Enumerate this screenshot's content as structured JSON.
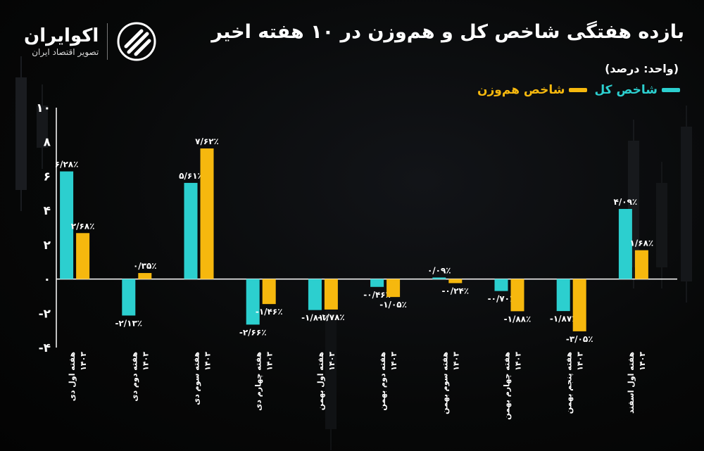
{
  "brand": {
    "name": "اکوایران",
    "tagline": "تصویر اقتصاد ایران",
    "logo_icon": "ecoiran-swirl-icon"
  },
  "colors": {
    "index_total": "#2ccfcf",
    "index_equal": "#f6b80e",
    "background": "#050505"
  },
  "chart_data": {
    "type": "bar",
    "title": "بازده هفتگی شاخص کل و هم‌وزن در ۱۰ هفته اخیر",
    "unit_note": "(واحد: درصد)",
    "legend_position": "top-right",
    "grid": false,
    "ylim": [
      -4,
      10
    ],
    "yticks": [
      "-۴",
      "-۲",
      "۰",
      "۲",
      "۴",
      "۶",
      "۸",
      "۱۰"
    ],
    "ytick_values": [
      -4,
      -2,
      0,
      2,
      4,
      6,
      8,
      10
    ],
    "categories": [
      [
        "هفته اول دی",
        "۱۴۰۳"
      ],
      [
        "هفته دوم دی",
        "۱۴۰۳"
      ],
      [
        "هفته سوم دی",
        "۱۴۰۳"
      ],
      [
        "هفته چهارم دی",
        "۱۴۰۳"
      ],
      [
        "هفته اول بهمن",
        "۱۴۰۳"
      ],
      [
        "هفته دوم بهمن",
        "۱۴۰۳"
      ],
      [
        "هفته سوم بهمن",
        "۱۴۰۳"
      ],
      [
        "هفته چهارم بهمن",
        "۱۴۰۳"
      ],
      [
        "هفته پنجم بهمن",
        "۱۴۰۳"
      ],
      [
        "هفته اول اسفند",
        "۱۴۰۳"
      ]
    ],
    "series": [
      {
        "name": "شاخص کل",
        "color": "#2ccfcf",
        "values": [
          6.28,
          -2.13,
          5.61,
          -2.66,
          -1.81,
          -0.46,
          0.09,
          -0.7,
          -1.87,
          4.09
        ],
        "labels": [
          "۶/۲۸٪",
          "-۲/۱۳٪",
          "۵/۶۱٪",
          "-۲/۶۶٪",
          "-۱/۸۱٪",
          "-۰/۴۶٪",
          "۰/۰۹٪",
          "-۰/۷۰٪",
          "-۱/۸۷٪",
          "۴/۰۹٪"
        ]
      },
      {
        "name": "شاخص هم‌وزن",
        "color": "#f6b80e",
        "values": [
          2.68,
          0.35,
          7.62,
          -1.46,
          -1.78,
          -1.05,
          -0.24,
          -1.88,
          -3.05,
          1.68
        ],
        "labels": [
          "۲/۶۸٪",
          "۰/۳۵٪",
          "۷/۶۲٪",
          "-۱/۴۶٪",
          "-۱/۷۸٪",
          "-۱/۰۵٪",
          "-۰/۲۴٪",
          "-۱/۸۸٪",
          "-۳/۰۵٪",
          "۱/۶۸٪"
        ]
      }
    ]
  }
}
